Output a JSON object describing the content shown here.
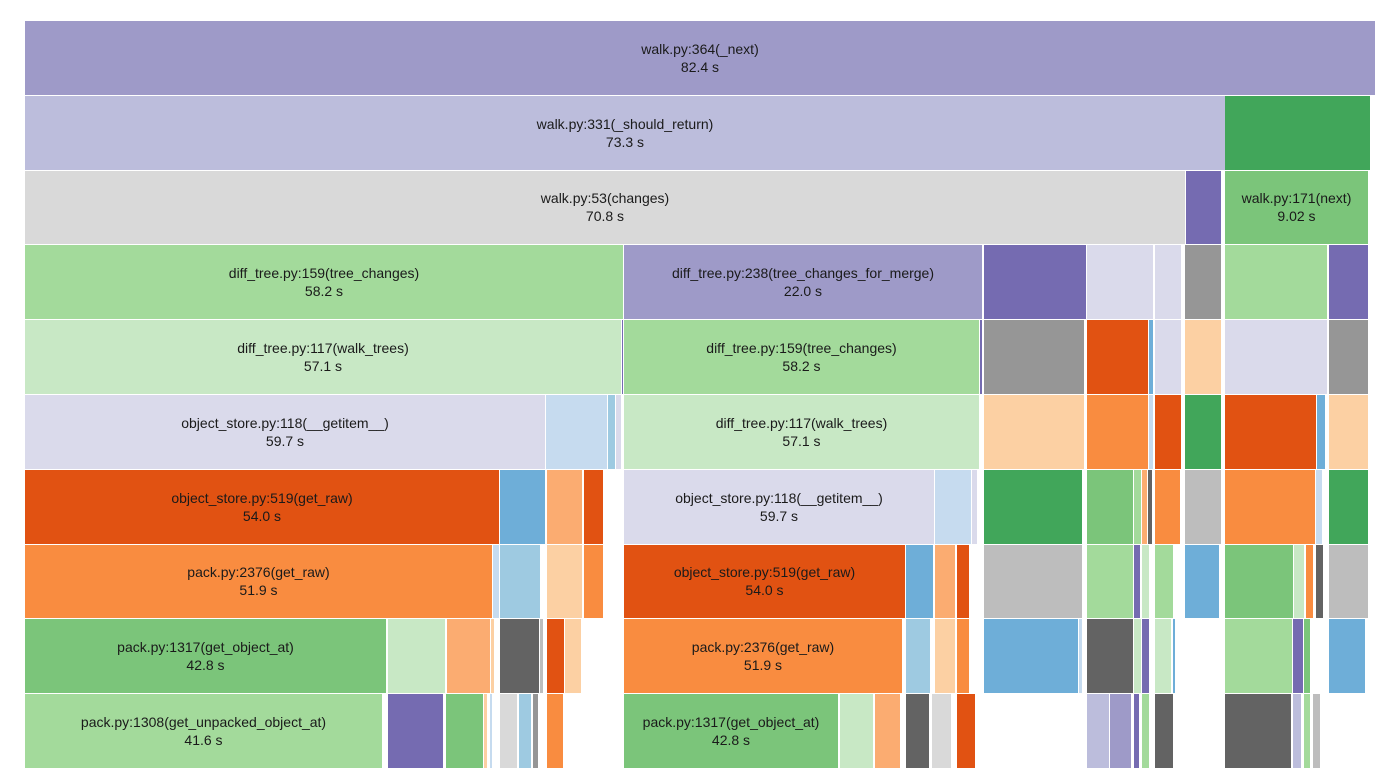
{
  "colors": {
    "purple_dark": "#756bb1",
    "purple_mid": "#9e9ac8",
    "purple_light": "#bcbddc",
    "purple_pale": "#dadaeb",
    "gray_light": "#d9d9d9",
    "gray_mid": "#bdbdbd",
    "gray_dark": "#969696",
    "gray_darker": "#636363",
    "green_dark": "#41a65a",
    "green_mid": "#7bc57a",
    "green_light": "#a3da9b",
    "green_pale": "#c8e8c5",
    "orange_dark": "#e15212",
    "orange_mid": "#f98c40",
    "orange_light": "#fbac71",
    "orange_pale": "#fcd0a3",
    "blue_mid": "#6eaed8",
    "blue_light": "#9ecae1",
    "blue_pale": "#c6dbef"
  },
  "frames": [
    {
      "row": 0,
      "x0": 0,
      "x1": 1350,
      "color": "purple_mid",
      "name": "walk.py:364(_next)",
      "time": "82.4 s"
    },
    {
      "row": 1,
      "x0": 0,
      "x1": 1200,
      "color": "purple_light",
      "name": "walk.py:331(_should_return)",
      "time": "73.3 s"
    },
    {
      "row": 1,
      "x0": 1200,
      "x1": 1345,
      "color": "green_dark"
    },
    {
      "row": 2,
      "x0": 0,
      "x1": 1160,
      "color": "gray_light",
      "name": "walk.py:53(changes)",
      "time": "70.8 s"
    },
    {
      "row": 2,
      "x0": 1161,
      "x1": 1196,
      "color": "purple_dark"
    },
    {
      "row": 2,
      "x0": 1200,
      "x1": 1343,
      "color": "green_mid",
      "name": "walk.py:171(next)",
      "time": "9.02 s"
    },
    {
      "row": 3,
      "x0": 0,
      "x1": 598,
      "color": "green_light",
      "name": "diff_tree.py:159(tree_changes)",
      "time": "58.2 s"
    },
    {
      "row": 3,
      "x0": 599,
      "x1": 957,
      "color": "purple_mid",
      "name": "diff_tree.py:238(tree_changes_for_merge)",
      "time": "22.0 s"
    },
    {
      "row": 3,
      "x0": 959,
      "x1": 1061,
      "color": "purple_dark"
    },
    {
      "row": 3,
      "x0": 1062,
      "x1": 1128,
      "color": "purple_pale"
    },
    {
      "row": 3,
      "x0": 1130,
      "x1": 1156,
      "color": "purple_pale"
    },
    {
      "row": 3,
      "x0": 1160,
      "x1": 1196,
      "color": "gray_dark"
    },
    {
      "row": 3,
      "x0": 1200,
      "x1": 1302,
      "color": "green_light"
    },
    {
      "row": 3,
      "x0": 1304,
      "x1": 1343,
      "color": "purple_dark"
    },
    {
      "row": 4,
      "x0": 0,
      "x1": 596,
      "color": "green_pale",
      "name": "diff_tree.py:117(walk_trees)",
      "time": "57.1 s"
    },
    {
      "row": 4,
      "x0": 597,
      "x1": 598,
      "color": "purple_dark"
    },
    {
      "row": 4,
      "x0": 599,
      "x1": 954,
      "color": "green_light",
      "name": "diff_tree.py:159(tree_changes)",
      "time": "58.2 s"
    },
    {
      "row": 4,
      "x0": 955,
      "x1": 957,
      "color": "purple_dark"
    },
    {
      "row": 4,
      "x0": 959,
      "x1": 1059,
      "color": "gray_dark"
    },
    {
      "row": 4,
      "x0": 1062,
      "x1": 1123,
      "color": "orange_dark"
    },
    {
      "row": 4,
      "x0": 1124,
      "x1": 1128,
      "color": "blue_mid"
    },
    {
      "row": 4,
      "x0": 1130,
      "x1": 1156,
      "color": "purple_pale"
    },
    {
      "row": 4,
      "x0": 1160,
      "x1": 1196,
      "color": "orange_pale"
    },
    {
      "row": 4,
      "x0": 1200,
      "x1": 1302,
      "color": "purple_pale"
    },
    {
      "row": 4,
      "x0": 1304,
      "x1": 1343,
      "color": "gray_dark"
    },
    {
      "row": 5,
      "x0": 0,
      "x1": 520,
      "color": "purple_pale",
      "name": "object_store.py:118(__getitem__)",
      "time": "59.7 s"
    },
    {
      "row": 5,
      "x0": 521,
      "x1": 582,
      "color": "blue_pale"
    },
    {
      "row": 5,
      "x0": 583,
      "x1": 590,
      "color": "blue_light"
    },
    {
      "row": 5,
      "x0": 591,
      "x1": 596,
      "color": "purple_pale"
    },
    {
      "row": 5,
      "x0": 599,
      "x1": 954,
      "color": "green_pale",
      "name": "diff_tree.py:117(walk_trees)",
      "time": "57.1 s"
    },
    {
      "row": 5,
      "x0": 959,
      "x1": 1059,
      "color": "orange_pale"
    },
    {
      "row": 5,
      "x0": 1062,
      "x1": 1123,
      "color": "orange_mid"
    },
    {
      "row": 5,
      "x0": 1124,
      "x1": 1128,
      "color": "blue_pale"
    },
    {
      "row": 5,
      "x0": 1130,
      "x1": 1156,
      "color": "orange_dark"
    },
    {
      "row": 5,
      "x0": 1160,
      "x1": 1196,
      "color": "green_dark"
    },
    {
      "row": 5,
      "x0": 1200,
      "x1": 1291,
      "color": "orange_dark"
    },
    {
      "row": 5,
      "x0": 1292,
      "x1": 1300,
      "color": "blue_mid"
    },
    {
      "row": 5,
      "x0": 1304,
      "x1": 1343,
      "color": "orange_pale"
    },
    {
      "row": 6,
      "x0": 0,
      "x1": 474,
      "color": "orange_dark",
      "name": "object_store.py:519(get_raw)",
      "time": "54.0 s"
    },
    {
      "row": 6,
      "x0": 475,
      "x1": 520,
      "color": "blue_mid"
    },
    {
      "row": 6,
      "x0": 522,
      "x1": 557,
      "color": "orange_light"
    },
    {
      "row": 6,
      "x0": 559,
      "x1": 578,
      "color": "orange_dark"
    },
    {
      "row": 6,
      "x0": 599,
      "x1": 909,
      "color": "purple_pale",
      "name": "object_store.py:118(__getitem__)",
      "time": "59.7 s"
    },
    {
      "row": 6,
      "x0": 910,
      "x1": 946,
      "color": "blue_pale"
    },
    {
      "row": 6,
      "x0": 947,
      "x1": 952,
      "color": "purple_pale"
    },
    {
      "row": 6,
      "x0": 959,
      "x1": 1057,
      "color": "green_dark"
    },
    {
      "row": 6,
      "x0": 1062,
      "x1": 1108,
      "color": "green_mid"
    },
    {
      "row": 6,
      "x0": 1109,
      "x1": 1116,
      "color": "green_light"
    },
    {
      "row": 6,
      "x0": 1117,
      "x1": 1122,
      "color": "orange_light"
    },
    {
      "row": 6,
      "x0": 1123,
      "x1": 1127,
      "color": "gray_darker"
    },
    {
      "row": 6,
      "x0": 1130,
      "x1": 1155,
      "color": "orange_mid"
    },
    {
      "row": 6,
      "x0": 1160,
      "x1": 1196,
      "color": "gray_mid"
    },
    {
      "row": 6,
      "x0": 1200,
      "x1": 1290,
      "color": "orange_mid"
    },
    {
      "row": 6,
      "x0": 1291,
      "x1": 1297,
      "color": "blue_pale"
    },
    {
      "row": 6,
      "x0": 1304,
      "x1": 1343,
      "color": "green_dark"
    },
    {
      "row": 7,
      "x0": 0,
      "x1": 467,
      "color": "orange_mid",
      "name": "pack.py:2376(get_raw)",
      "time": "51.9 s"
    },
    {
      "row": 7,
      "x0": 468,
      "x1": 474,
      "color": "blue_pale"
    },
    {
      "row": 7,
      "x0": 475,
      "x1": 515,
      "color": "blue_light"
    },
    {
      "row": 7,
      "x0": 522,
      "x1": 557,
      "color": "orange_pale"
    },
    {
      "row": 7,
      "x0": 559,
      "x1": 578,
      "color": "orange_mid"
    },
    {
      "row": 7,
      "x0": 599,
      "x1": 880,
      "color": "orange_dark",
      "name": "object_store.py:519(get_raw)",
      "time": "54.0 s"
    },
    {
      "row": 7,
      "x0": 881,
      "x1": 908,
      "color": "blue_mid"
    },
    {
      "row": 7,
      "x0": 910,
      "x1": 930,
      "color": "orange_light"
    },
    {
      "row": 7,
      "x0": 932,
      "x1": 944,
      "color": "orange_dark"
    },
    {
      "row": 7,
      "x0": 959,
      "x1": 1057,
      "color": "gray_mid"
    },
    {
      "row": 7,
      "x0": 1062,
      "x1": 1108,
      "color": "green_light"
    },
    {
      "row": 7,
      "x0": 1109,
      "x1": 1115,
      "color": "purple_dark"
    },
    {
      "row": 7,
      "x0": 1117,
      "x1": 1124,
      "color": "green_pale"
    },
    {
      "row": 7,
      "x0": 1130,
      "x1": 1148,
      "color": "green_light"
    },
    {
      "row": 7,
      "x0": 1160,
      "x1": 1194,
      "color": "blue_mid"
    },
    {
      "row": 7,
      "x0": 1200,
      "x1": 1268,
      "color": "green_mid"
    },
    {
      "row": 7,
      "x0": 1269,
      "x1": 1279,
      "color": "green_pale"
    },
    {
      "row": 7,
      "x0": 1281,
      "x1": 1288,
      "color": "orange_mid"
    },
    {
      "row": 7,
      "x0": 1291,
      "x1": 1298,
      "color": "gray_darker"
    },
    {
      "row": 7,
      "x0": 1304,
      "x1": 1343,
      "color": "gray_mid"
    },
    {
      "row": 8,
      "x0": 0,
      "x1": 361,
      "color": "green_mid",
      "name": "pack.py:1317(get_object_at)",
      "time": "42.8 s"
    },
    {
      "row": 8,
      "x0": 363,
      "x1": 420,
      "color": "green_pale"
    },
    {
      "row": 8,
      "x0": 422,
      "x1": 465,
      "color": "orange_light"
    },
    {
      "row": 8,
      "x0": 466,
      "x1": 469,
      "color": "orange_pale"
    },
    {
      "row": 8,
      "x0": 475,
      "x1": 514,
      "color": "gray_darker"
    },
    {
      "row": 8,
      "x0": 515,
      "x1": 518,
      "color": "gray_mid"
    },
    {
      "row": 8,
      "x0": 522,
      "x1": 539,
      "color": "orange_dark"
    },
    {
      "row": 8,
      "x0": 540,
      "x1": 556,
      "color": "orange_pale"
    },
    {
      "row": 8,
      "x0": 599,
      "x1": 877,
      "color": "orange_mid",
      "name": "pack.py:2376(get_raw)",
      "time": "51.9 s"
    },
    {
      "row": 8,
      "x0": 881,
      "x1": 905,
      "color": "blue_light"
    },
    {
      "row": 8,
      "x0": 910,
      "x1": 930,
      "color": "orange_pale"
    },
    {
      "row": 8,
      "x0": 932,
      "x1": 944,
      "color": "orange_mid"
    },
    {
      "row": 8,
      "x0": 959,
      "x1": 1053,
      "color": "blue_mid"
    },
    {
      "row": 8,
      "x0": 1054,
      "x1": 1057,
      "color": "blue_pale"
    },
    {
      "row": 8,
      "x0": 1062,
      "x1": 1108,
      "color": "gray_darker"
    },
    {
      "row": 8,
      "x0": 1109,
      "x1": 1116,
      "color": "green_pale"
    },
    {
      "row": 8,
      "x0": 1117,
      "x1": 1124,
      "color": "purple_dark"
    },
    {
      "row": 8,
      "x0": 1130,
      "x1": 1146,
      "color": "green_pale"
    },
    {
      "row": 8,
      "x0": 1148,
      "x1": 1150,
      "color": "blue_mid"
    },
    {
      "row": 8,
      "x0": 1200,
      "x1": 1267,
      "color": "green_light"
    },
    {
      "row": 8,
      "x0": 1268,
      "x1": 1278,
      "color": "purple_dark"
    },
    {
      "row": 8,
      "x0": 1279,
      "x1": 1285,
      "color": "green_mid"
    },
    {
      "row": 8,
      "x0": 1304,
      "x1": 1340,
      "color": "blue_mid"
    },
    {
      "row": 9,
      "x0": 0,
      "x1": 357,
      "color": "green_light",
      "name": "pack.py:1308(get_unpacked_object_at)",
      "time": "41.6 s"
    },
    {
      "row": 9,
      "x0": 363,
      "x1": 418,
      "color": "purple_dark"
    },
    {
      "row": 9,
      "x0": 421,
      "x1": 458,
      "color": "green_mid"
    },
    {
      "row": 9,
      "x0": 459,
      "x1": 462,
      "color": "orange_pale"
    },
    {
      "row": 9,
      "x0": 465,
      "x1": 467,
      "color": "blue_pale"
    },
    {
      "row": 9,
      "x0": 475,
      "x1": 492,
      "color": "gray_light"
    },
    {
      "row": 9,
      "x0": 494,
      "x1": 506,
      "color": "blue_light"
    },
    {
      "row": 9,
      "x0": 508,
      "x1": 513,
      "color": "gray_dark"
    },
    {
      "row": 9,
      "x0": 522,
      "x1": 538,
      "color": "orange_mid"
    },
    {
      "row": 9,
      "x0": 599,
      "x1": 813,
      "color": "green_mid",
      "name": "pack.py:1317(get_object_at)",
      "time": "42.8 s"
    },
    {
      "row": 9,
      "x0": 815,
      "x1": 848,
      "color": "green_pale"
    },
    {
      "row": 9,
      "x0": 850,
      "x1": 875,
      "color": "orange_light"
    },
    {
      "row": 9,
      "x0": 881,
      "x1": 904,
      "color": "gray_darker"
    },
    {
      "row": 9,
      "x0": 907,
      "x1": 926,
      "color": "gray_light"
    },
    {
      "row": 9,
      "x0": 932,
      "x1": 950,
      "color": "orange_dark"
    },
    {
      "row": 9,
      "x0": 1062,
      "x1": 1084,
      "color": "purple_light"
    },
    {
      "row": 9,
      "x0": 1085,
      "x1": 1106,
      "color": "purple_mid"
    },
    {
      "row": 9,
      "x0": 1109,
      "x1": 1114,
      "color": "purple_dark"
    },
    {
      "row": 9,
      "x0": 1117,
      "x1": 1124,
      "color": "green_light"
    },
    {
      "row": 9,
      "x0": 1130,
      "x1": 1148,
      "color": "gray_darker"
    },
    {
      "row": 9,
      "x0": 1200,
      "x1": 1266,
      "color": "gray_darker"
    },
    {
      "row": 9,
      "x0": 1268,
      "x1": 1276,
      "color": "purple_light"
    },
    {
      "row": 9,
      "x0": 1279,
      "x1": 1285,
      "color": "green_light"
    },
    {
      "row": 9,
      "x0": 1288,
      "x1": 1295,
      "color": "gray_mid"
    }
  ]
}
